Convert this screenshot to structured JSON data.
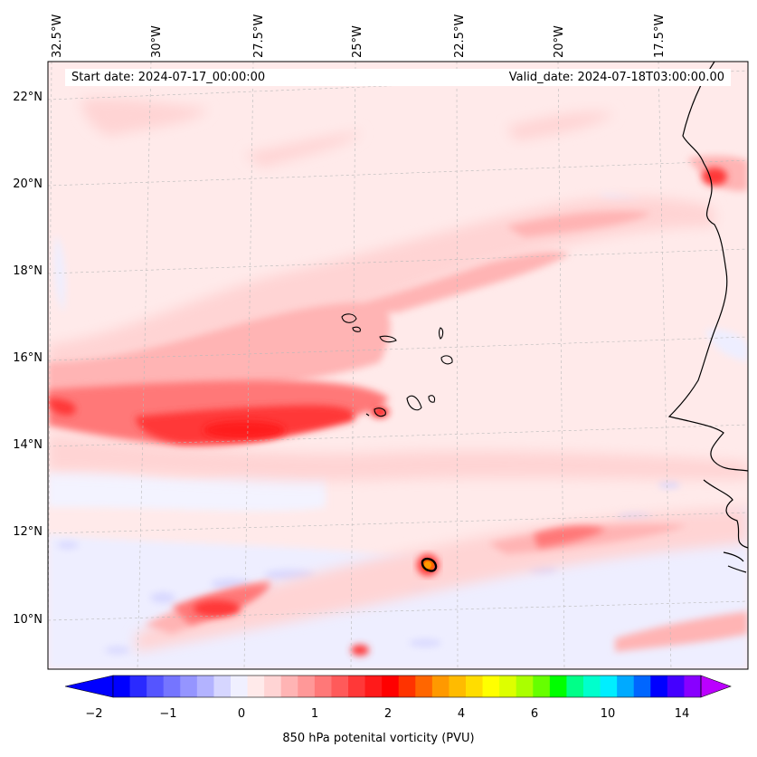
{
  "header": {
    "start_date": "Start date: 2024-07-17_00:00:00",
    "valid_date": "Valid_date: 2024-07-18T03:00:00.00"
  },
  "map": {
    "lon_labels": [
      "32.5°W",
      "30°W",
      "27.5°W",
      "25°W",
      "22.5°W",
      "20°W",
      "17.5°W"
    ],
    "lat_labels": [
      "22°N",
      "20°N",
      "18°N",
      "16°N",
      "14°N",
      "12°N",
      "10°N"
    ],
    "gridlines": "dashed",
    "field_features": [
      {
        "name": "pv-band-north-central",
        "level": 0.75
      },
      {
        "name": "pv-band-west-max",
        "level": 2.0
      },
      {
        "name": "pv-band-south-diagonal",
        "level": 1.0
      },
      {
        "name": "pv-hotspot-island",
        "level": 4.0
      },
      {
        "name": "pv-minimum-patches",
        "level": -0.5
      }
    ]
  },
  "colorbar": {
    "label": "850 hPa potenital vorticity (PVU)",
    "ticks": [
      "−2",
      "−1",
      "0",
      "1",
      "2",
      "4",
      "6",
      "10",
      "14"
    ],
    "colors": [
      "#0000ff",
      "#2a2aff",
      "#5555ff",
      "#7575ff",
      "#9595ff",
      "#b3b3ff",
      "#d6d6ff",
      "#f0f0ff",
      "#ffeaea",
      "#ffd4d4",
      "#ffb4b4",
      "#ff9898",
      "#ff7878",
      "#ff5a5a",
      "#ff3838",
      "#ff1a1a",
      "#ff0000",
      "#ff3300",
      "#ff6600",
      "#ff9900",
      "#ffbb00",
      "#ffdd00",
      "#ffff00",
      "#ddff00",
      "#aaff00",
      "#66ff00",
      "#00ff00",
      "#00ff88",
      "#00ffcc",
      "#00eeff",
      "#00aaff",
      "#0066ff",
      "#0000ff",
      "#4400ff",
      "#8800ff"
    ],
    "under_color": "#0000ff",
    "over_color": "#bb00ff"
  }
}
